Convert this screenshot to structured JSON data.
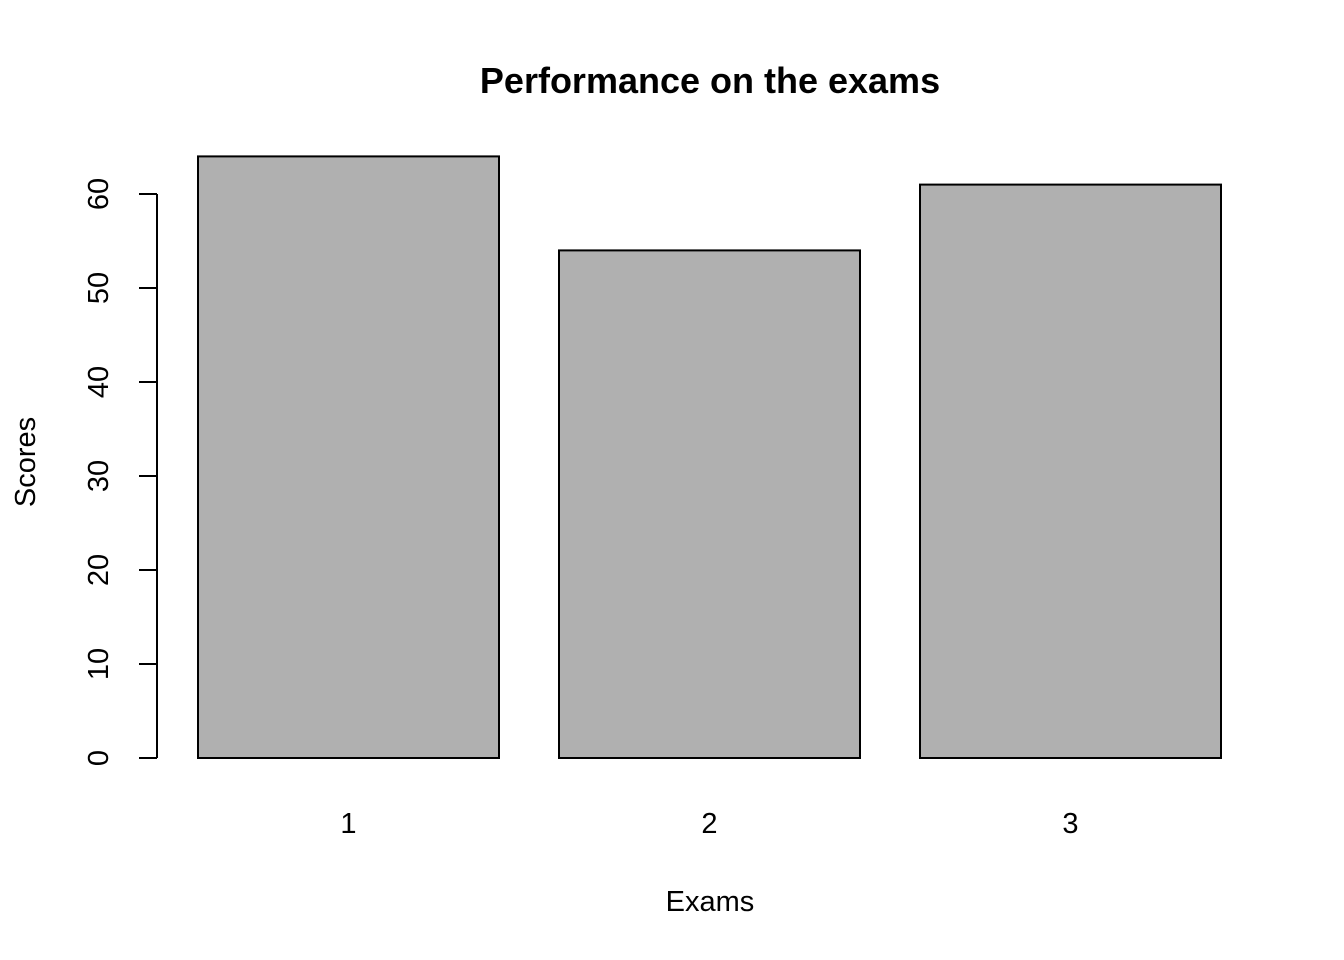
{
  "chart_data": {
    "type": "bar",
    "title": "Performance on the exams",
    "xlabel": "Exams",
    "ylabel": "Scores",
    "categories": [
      "1",
      "2",
      "3"
    ],
    "values": [
      64,
      54,
      61
    ],
    "ylim": [
      0,
      60
    ],
    "yticks": [
      0,
      10,
      20,
      30,
      40,
      50,
      60
    ],
    "bar_color": "#b0b0b0",
    "grid": false,
    "legend": "none"
  }
}
